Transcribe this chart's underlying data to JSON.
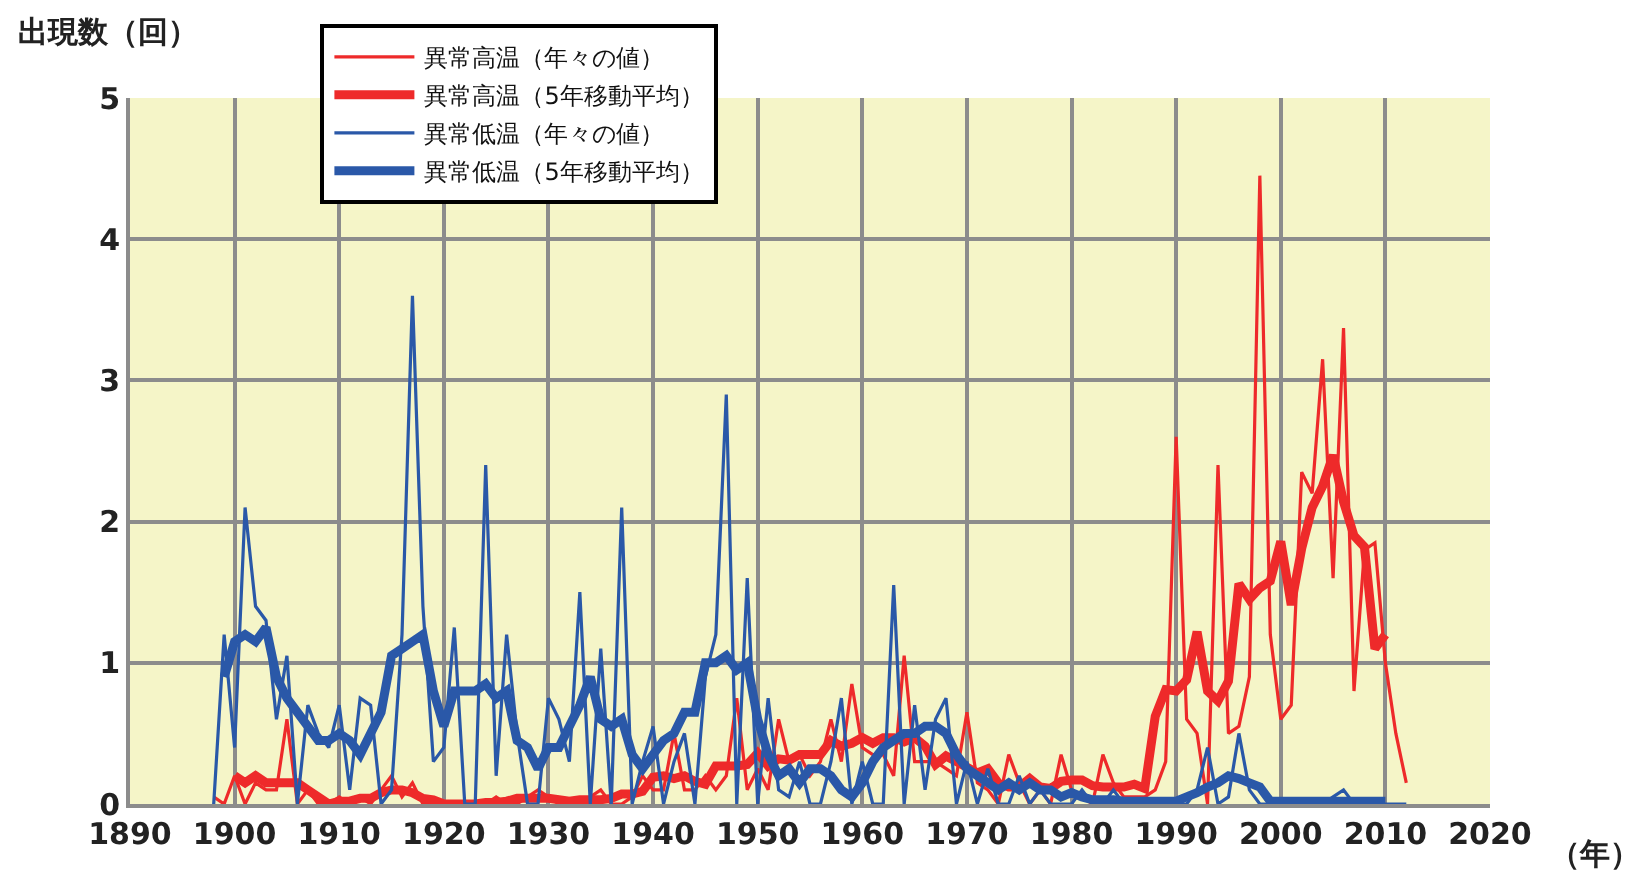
{
  "chart_data": {
    "type": "line",
    "ylabel": "出現数（回）",
    "xlabel": "（年）",
    "xlim": [
      1890,
      2020
    ],
    "xticks": [
      1890,
      1900,
      1910,
      1920,
      1930,
      1940,
      1950,
      1960,
      1970,
      1980,
      1990,
      2000,
      2010,
      2020
    ],
    "ylim": [
      0,
      5
    ],
    "yticks": [
      0,
      1,
      2,
      3,
      4,
      5
    ],
    "grid": true,
    "legend": "top left",
    "marker": "none",
    "line_style": "solid",
    "series": [
      {
        "name": "異常高温（年々の値）",
        "color": "#ee2a2a",
        "x": [
          1898,
          1899,
          1900,
          1901,
          1902,
          1903,
          1904,
          1905,
          1906,
          1907,
          1908,
          1909,
          1910,
          1911,
          1912,
          1913,
          1914,
          1915,
          1916,
          1917,
          1918,
          1919,
          1920,
          1921,
          1922,
          1923,
          1924,
          1925,
          1926,
          1927,
          1928,
          1929,
          1930,
          1931,
          1932,
          1933,
          1934,
          1935,
          1936,
          1937,
          1938,
          1939,
          1940,
          1941,
          1942,
          1943,
          1944,
          1945,
          1946,
          1947,
          1948,
          1949,
          1950,
          1951,
          1952,
          1953,
          1954,
          1955,
          1956,
          1957,
          1958,
          1959,
          1960,
          1961,
          1962,
          1963,
          1964,
          1965,
          1966,
          1967,
          1968,
          1969,
          1970,
          1971,
          1972,
          1973,
          1974,
          1975,
          1976,
          1977,
          1978,
          1979,
          1980,
          1981,
          1982,
          1983,
          1984,
          1985,
          1986,
          1987,
          1988,
          1989,
          1990,
          1991,
          1992,
          1993,
          1994,
          1995,
          1996,
          1997,
          1998,
          1999,
          2000,
          2001,
          2002,
          2003,
          2004,
          2005,
          2006,
          2007,
          2008,
          2009,
          2010,
          2011,
          2012
        ],
        "values": [
          0.05,
          0.0,
          0.2,
          0.0,
          0.15,
          0.1,
          0.1,
          0.6,
          0.0,
          0.1,
          0.0,
          0.0,
          0.05,
          0.0,
          0.05,
          0.0,
          0.1,
          0.2,
          0.05,
          0.15,
          0.0,
          0.0,
          0.0,
          0.0,
          0.0,
          0.0,
          0.0,
          0.05,
          0.0,
          0.0,
          0.05,
          0.1,
          0.05,
          0.0,
          0.0,
          0.0,
          0.05,
          0.1,
          0.0,
          0.0,
          0.05,
          0.2,
          0.1,
          0.1,
          0.5,
          0.1,
          0.1,
          0.2,
          0.1,
          0.2,
          0.75,
          0.1,
          0.25,
          0.1,
          0.6,
          0.3,
          0.35,
          0.2,
          0.3,
          0.6,
          0.3,
          0.85,
          0.4,
          0.35,
          0.35,
          0.2,
          1.05,
          0.3,
          0.3,
          0.3,
          0.25,
          0.2,
          0.65,
          0.15,
          0.1,
          0.0,
          0.35,
          0.15,
          0.0,
          0.1,
          0.0,
          0.35,
          0.1,
          0.05,
          0.0,
          0.35,
          0.15,
          0.05,
          0.05,
          0.05,
          0.1,
          0.3,
          2.6,
          0.6,
          0.5,
          0.0,
          2.4,
          0.5,
          0.55,
          0.9,
          4.45,
          1.2,
          0.6,
          0.7,
          2.35,
          2.2,
          3.15,
          1.6,
          3.37,
          0.8,
          1.8,
          1.85,
          1.0,
          0.5,
          0.15
        ]
      },
      {
        "name": "異常高温（5年移動平均）",
        "color": "#ee2a2a",
        "x": [
          1900,
          1901,
          1902,
          1903,
          1904,
          1905,
          1906,
          1907,
          1908,
          1909,
          1910,
          1911,
          1912,
          1913,
          1914,
          1915,
          1916,
          1917,
          1918,
          1919,
          1920,
          1921,
          1922,
          1923,
          1924,
          1925,
          1926,
          1927,
          1928,
          1929,
          1930,
          1931,
          1932,
          1933,
          1934,
          1935,
          1936,
          1937,
          1938,
          1939,
          1940,
          1941,
          1942,
          1943,
          1944,
          1945,
          1946,
          1947,
          1948,
          1949,
          1950,
          1951,
          1952,
          1953,
          1954,
          1955,
          1956,
          1957,
          1958,
          1959,
          1960,
          1961,
          1962,
          1963,
          1964,
          1965,
          1966,
          1967,
          1968,
          1969,
          1970,
          1971,
          1972,
          1973,
          1974,
          1975,
          1976,
          1977,
          1978,
          1979,
          1980,
          1981,
          1982,
          1983,
          1984,
          1985,
          1986,
          1987,
          1988,
          1989,
          1990,
          1991,
          1992,
          1993,
          1994,
          1995,
          1996,
          1997,
          1998,
          1999,
          2000,
          2001,
          2002,
          2003,
          2004,
          2005,
          2006,
          2007,
          2008,
          2009,
          2010
        ],
        "values": [
          0.2,
          0.15,
          0.2,
          0.15,
          0.15,
          0.15,
          0.15,
          0.1,
          0.05,
          0.0,
          0.02,
          0.02,
          0.04,
          0.04,
          0.08,
          0.1,
          0.1,
          0.08,
          0.04,
          0.03,
          0.0,
          0.0,
          0.0,
          0.0,
          0.01,
          0.01,
          0.02,
          0.04,
          0.04,
          0.04,
          0.04,
          0.03,
          0.02,
          0.03,
          0.03,
          0.03,
          0.04,
          0.07,
          0.07,
          0.09,
          0.19,
          0.2,
          0.18,
          0.2,
          0.16,
          0.14,
          0.27,
          0.27,
          0.27,
          0.28,
          0.36,
          0.27,
          0.32,
          0.31,
          0.35,
          0.35,
          0.35,
          0.45,
          0.41,
          0.43,
          0.47,
          0.43,
          0.47,
          0.47,
          0.44,
          0.47,
          0.41,
          0.28,
          0.34,
          0.3,
          0.26,
          0.22,
          0.25,
          0.15,
          0.12,
          0.12,
          0.18,
          0.12,
          0.11,
          0.16,
          0.17,
          0.17,
          0.13,
          0.12,
          0.12,
          0.12,
          0.14,
          0.11,
          0.62,
          0.81,
          0.8,
          0.88,
          1.22,
          0.8,
          0.73,
          0.87,
          1.56,
          1.45,
          1.53,
          1.58,
          1.86,
          1.41,
          1.81,
          2.1,
          2.25,
          2.47,
          2.14,
          1.9,
          1.82,
          1.1,
          1.2
        ]
      },
      {
        "name": "異常低温（年々の値）",
        "color": "#2a58a8",
        "x": [
          1898,
          1899,
          1900,
          1901,
          1902,
          1903,
          1904,
          1905,
          1906,
          1907,
          1908,
          1909,
          1910,
          1911,
          1912,
          1913,
          1914,
          1915,
          1916,
          1917,
          1918,
          1919,
          1920,
          1921,
          1922,
          1923,
          1924,
          1925,
          1926,
          1927,
          1928,
          1929,
          1930,
          1931,
          1932,
          1933,
          1934,
          1935,
          1936,
          1937,
          1938,
          1939,
          1940,
          1941,
          1942,
          1943,
          1944,
          1945,
          1946,
          1947,
          1948,
          1949,
          1950,
          1951,
          1952,
          1953,
          1954,
          1955,
          1956,
          1957,
          1958,
          1959,
          1960,
          1961,
          1962,
          1963,
          1964,
          1965,
          1966,
          1967,
          1968,
          1969,
          1970,
          1971,
          1972,
          1973,
          1974,
          1975,
          1976,
          1977,
          1978,
          1979,
          1980,
          1981,
          1982,
          1983,
          1984,
          1985,
          1986,
          1987,
          1988,
          1989,
          1990,
          1991,
          1992,
          1993,
          1994,
          1995,
          1996,
          1997,
          1998,
          1999,
          2000,
          2001,
          2002,
          2003,
          2004,
          2005,
          2006,
          2007,
          2008,
          2009,
          2010,
          2011,
          2012
        ],
        "values": [
          0.0,
          1.2,
          0.4,
          2.1,
          1.4,
          1.3,
          0.6,
          1.05,
          0.0,
          0.7,
          0.5,
          0.4,
          0.7,
          0.1,
          0.75,
          0.7,
          0.0,
          0.1,
          1.2,
          3.6,
          1.4,
          0.3,
          0.4,
          1.25,
          0.0,
          0.0,
          2.4,
          0.2,
          1.2,
          0.5,
          0.0,
          0.0,
          0.75,
          0.6,
          0.3,
          1.5,
          0.0,
          1.1,
          0.0,
          2.1,
          0.0,
          0.3,
          0.55,
          0.0,
          0.3,
          0.5,
          0.0,
          0.9,
          1.2,
          2.9,
          0.0,
          1.6,
          0.0,
          0.75,
          0.1,
          0.05,
          0.3,
          0.0,
          0.0,
          0.3,
          0.75,
          0.0,
          0.3,
          0.0,
          0.0,
          1.55,
          0.0,
          0.7,
          0.1,
          0.6,
          0.75,
          0.0,
          0.3,
          0.0,
          0.25,
          0.0,
          0.0,
          0.2,
          0.0,
          0.1,
          0.0,
          0.0,
          0.0,
          0.1,
          0.0,
          0.0,
          0.1,
          0.0,
          0.0,
          0.0,
          0.0,
          0.0,
          0.0,
          0.0,
          0.1,
          0.4,
          0.0,
          0.05,
          0.5,
          0.1,
          0.0,
          0.0,
          0.0,
          0.0,
          0.0,
          0.0,
          0.0,
          0.05,
          0.1,
          0.0,
          0.0,
          0.0,
          0.0,
          0.0,
          0.0
        ]
      },
      {
        "name": "異常低温（5年移動平均）",
        "color": "#2a58a8",
        "x": [
          1899,
          1900,
          1901,
          1902,
          1903,
          1904,
          1905,
          1906,
          1907,
          1908,
          1909,
          1910,
          1911,
          1912,
          1913,
          1914,
          1915,
          1916,
          1917,
          1918,
          1919,
          1920,
          1921,
          1922,
          1923,
          1924,
          1925,
          1926,
          1927,
          1928,
          1929,
          1930,
          1931,
          1932,
          1933,
          1934,
          1935,
          1936,
          1937,
          1938,
          1939,
          1940,
          1941,
          1942,
          1943,
          1944,
          1945,
          1946,
          1947,
          1948,
          1949,
          1950,
          1951,
          1952,
          1953,
          1954,
          1955,
          1956,
          1957,
          1958,
          1959,
          1960,
          1961,
          1962,
          1963,
          1964,
          1965,
          1966,
          1967,
          1968,
          1969,
          1970,
          1971,
          1972,
          1973,
          1974,
          1975,
          1976,
          1977,
          1978,
          1979,
          1980,
          1981,
          1982,
          1983,
          1984,
          1985,
          1986,
          1987,
          1988,
          1989,
          1990,
          1991,
          1992,
          1993,
          1994,
          1995,
          1996,
          1997,
          1998,
          1999,
          2000,
          2001,
          2002,
          2003,
          2004,
          2005,
          2006,
          2007,
          2008,
          2009,
          2010
        ],
        "values": [
          0.9,
          1.15,
          1.2,
          1.15,
          1.25,
          0.9,
          0.75,
          0.65,
          0.55,
          0.45,
          0.45,
          0.5,
          0.45,
          0.35,
          0.5,
          0.65,
          1.05,
          1.1,
          1.15,
          1.2,
          0.8,
          0.55,
          0.8,
          0.8,
          0.8,
          0.85,
          0.75,
          0.8,
          0.45,
          0.4,
          0.25,
          0.4,
          0.4,
          0.55,
          0.7,
          0.9,
          0.6,
          0.55,
          0.6,
          0.35,
          0.25,
          0.35,
          0.45,
          0.5,
          0.65,
          0.65,
          1.0,
          1.0,
          1.05,
          0.95,
          1.0,
          0.6,
          0.35,
          0.2,
          0.25,
          0.15,
          0.25,
          0.25,
          0.2,
          0.1,
          0.05,
          0.15,
          0.3,
          0.4,
          0.45,
          0.5,
          0.5,
          0.55,
          0.55,
          0.5,
          0.35,
          0.25,
          0.2,
          0.15,
          0.1,
          0.15,
          0.1,
          0.15,
          0.1,
          0.1,
          0.05,
          0.08,
          0.05,
          0.03,
          0.03,
          0.03,
          0.02,
          0.02,
          0.02,
          0.02,
          0.02,
          0.02,
          0.05,
          0.08,
          0.12,
          0.15,
          0.2,
          0.18,
          0.15,
          0.12,
          0.02,
          0.02,
          0.02,
          0.02,
          0.02,
          0.02,
          0.02,
          0.02,
          0.02,
          0.02,
          0.02,
          0.02
        ]
      }
    ]
  }
}
